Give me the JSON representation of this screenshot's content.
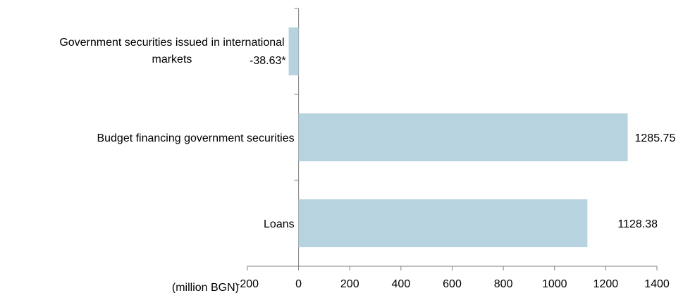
{
  "chart_data": {
    "type": "bar",
    "orientation": "horizontal",
    "categories": [
      [
        "Government securities issued in international",
        "markets"
      ],
      [
        "Budget financing government securities"
      ],
      [
        "Loans"
      ]
    ],
    "values": [
      -38.63,
      1285.75,
      1128.38
    ],
    "data_labels": [
      "-38.63*",
      "1285.75",
      "1128.38"
    ],
    "x_unit_label": "(million BGN)",
    "xlim": [
      -200,
      1400
    ],
    "x_ticks": [
      -200,
      0,
      200,
      400,
      600,
      800,
      1000,
      1200,
      1400
    ],
    "grid": false,
    "legend": "none",
    "bar_color": "#b7d3df",
    "axis_color": "#808080"
  }
}
